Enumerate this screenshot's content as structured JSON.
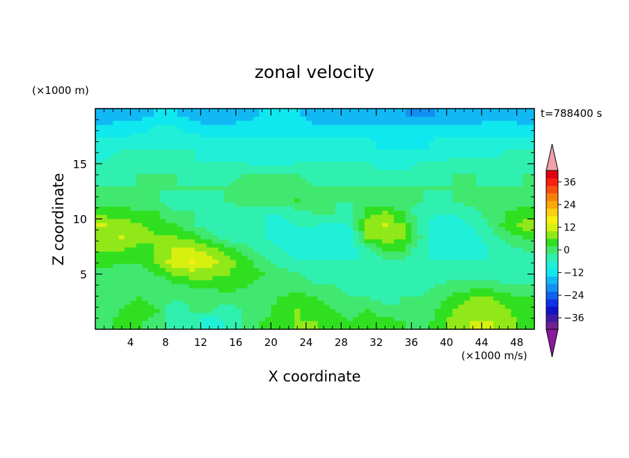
{
  "chart_data": {
    "type": "heatmap",
    "title": "zonal velocity",
    "xlabel": "X coordinate",
    "ylabel": "Z coordinate",
    "x_unit_note": "(×1000 m/s)",
    "y_unit_note": "(×1000 m)",
    "time_label": "t=788400 s",
    "xlim": [
      0,
      50
    ],
    "ylim": [
      0,
      20
    ],
    "x_ticks": [
      4,
      8,
      12,
      16,
      20,
      24,
      28,
      32,
      36,
      40,
      44,
      48
    ],
    "y_ticks": [
      5,
      10,
      15
    ],
    "colorbar": {
      "min": -42,
      "max": 42,
      "step": 4,
      "tick_labels": [
        "36",
        "24",
        "12",
        "0",
        "-12",
        "-24",
        "-36"
      ],
      "tick_values": [
        36,
        24,
        12,
        0,
        -12,
        -24,
        -36
      ],
      "extend": "both",
      "colors_low_to_high": [
        "#6f1f8f",
        "#3a1aa6",
        "#1010c8",
        "#1030e6",
        "#1060f0",
        "#1090f4",
        "#10b8f4",
        "#10e8f0",
        "#20f0d8",
        "#30f0b0",
        "#40e870",
        "#30e020",
        "#90e818",
        "#d8f010",
        "#f8f010",
        "#f8d010",
        "#f8a808",
        "#f88008",
        "#f85010",
        "#f82010",
        "#e00010"
      ],
      "under_color": "#8a1aa0",
      "over_color": "#f0a0a8"
    },
    "field": {
      "description_grid_z_from_top": [
        [
          -16,
          -16,
          -16,
          -14,
          -14,
          -16,
          -18,
          -18,
          -16,
          -14,
          -14,
          -14,
          -16,
          -16,
          -16,
          -16,
          -16,
          -18,
          -20,
          -18,
          -16,
          -16,
          -16,
          -16,
          -16
        ],
        [
          -14,
          -12,
          -12,
          -10,
          -10,
          -12,
          -14,
          -14,
          -12,
          -12,
          -12,
          -12,
          -14,
          -14,
          -14,
          -14,
          -14,
          -14,
          -14,
          -14,
          -14,
          -14,
          -12,
          -12,
          -14
        ],
        [
          -10,
          -10,
          -8,
          -8,
          -8,
          -8,
          -10,
          -10,
          -10,
          -10,
          -10,
          -10,
          -10,
          -10,
          -10,
          -10,
          -12,
          -12,
          -12,
          -10,
          -10,
          -10,
          -10,
          -10,
          -10
        ],
        [
          -8,
          -6,
          -6,
          -6,
          -6,
          -6,
          -8,
          -8,
          -8,
          -8,
          -8,
          -8,
          -8,
          -8,
          -8,
          -8,
          -10,
          -10,
          -10,
          -8,
          -8,
          -8,
          -8,
          -6,
          -6
        ],
        [
          -6,
          -4,
          -4,
          -4,
          -4,
          -6,
          -6,
          -6,
          -6,
          -8,
          -8,
          -6,
          -6,
          -6,
          -6,
          -6,
          -8,
          -8,
          -6,
          -6,
          -4,
          -4,
          -4,
          -4,
          -4
        ],
        [
          -4,
          -4,
          -2,
          -2,
          -2,
          -4,
          -4,
          -4,
          -2,
          -2,
          -2,
          -2,
          -4,
          -4,
          -4,
          -4,
          -4,
          -4,
          -4,
          -4,
          -2,
          -2,
          -4,
          -4,
          -2
        ],
        [
          -2,
          -2,
          -2,
          -2,
          -2,
          -2,
          -2,
          -2,
          0,
          0,
          0,
          0,
          -2,
          -2,
          -2,
          -2,
          -2,
          -2,
          -2,
          -2,
          -2,
          -2,
          -2,
          -2,
          -2
        ],
        [
          0,
          0,
          -2,
          -2,
          -4,
          -4,
          -4,
          -2,
          0,
          0,
          0,
          2,
          0,
          -2,
          -2,
          -2,
          -2,
          -2,
          -2,
          -4,
          -2,
          0,
          0,
          0,
          0
        ],
        [
          4,
          4,
          2,
          2,
          -2,
          -2,
          -4,
          -4,
          -4,
          -6,
          -6,
          -4,
          -2,
          -2,
          -4,
          4,
          6,
          2,
          -4,
          -6,
          -6,
          -4,
          0,
          2,
          4
        ],
        [
          10,
          8,
          6,
          4,
          2,
          -2,
          -4,
          -6,
          -6,
          -6,
          -8,
          -6,
          -6,
          -8,
          -6,
          8,
          10,
          6,
          -4,
          -8,
          -8,
          -6,
          -2,
          4,
          8
        ],
        [
          8,
          10,
          8,
          6,
          6,
          4,
          0,
          -4,
          -6,
          -6,
          -8,
          -8,
          -8,
          -8,
          -8,
          6,
          8,
          6,
          -2,
          -8,
          -10,
          -8,
          -4,
          0,
          2
        ],
        [
          6,
          6,
          4,
          6,
          10,
          10,
          8,
          4,
          0,
          -4,
          -6,
          -8,
          -8,
          -8,
          -8,
          -4,
          4,
          2,
          -4,
          -8,
          -8,
          -8,
          -6,
          -4,
          -2
        ],
        [
          4,
          2,
          2,
          6,
          12,
          14,
          12,
          8,
          4,
          0,
          -4,
          -6,
          -6,
          -6,
          -6,
          -6,
          -4,
          -4,
          -6,
          -6,
          -6,
          -6,
          -6,
          -6,
          -4
        ],
        [
          0,
          0,
          0,
          2,
          6,
          8,
          8,
          6,
          4,
          2,
          0,
          -2,
          -4,
          -4,
          -4,
          -4,
          -6,
          -6,
          -6,
          -4,
          -4,
          -4,
          -4,
          -4,
          -4
        ],
        [
          -2,
          0,
          0,
          -2,
          0,
          2,
          2,
          4,
          2,
          0,
          0,
          0,
          -2,
          -2,
          -4,
          -4,
          -4,
          -4,
          -4,
          -2,
          0,
          0,
          0,
          -2,
          -2
        ],
        [
          0,
          0,
          2,
          0,
          -2,
          0,
          0,
          0,
          0,
          -2,
          2,
          4,
          2,
          0,
          -2,
          -2,
          -4,
          -2,
          -2,
          0,
          4,
          6,
          6,
          4,
          2
        ],
        [
          0,
          2,
          4,
          2,
          -6,
          -2,
          -2,
          -4,
          -2,
          0,
          4,
          6,
          4,
          2,
          0,
          2,
          0,
          -2,
          -2,
          2,
          6,
          8,
          8,
          6,
          2
        ],
        [
          0,
          4,
          2,
          0,
          -4,
          -4,
          -10,
          -6,
          -2,
          2,
          4,
          6,
          6,
          4,
          2,
          4,
          4,
          2,
          -2,
          4,
          8,
          10,
          10,
          8,
          4
        ]
      ]
    }
  }
}
